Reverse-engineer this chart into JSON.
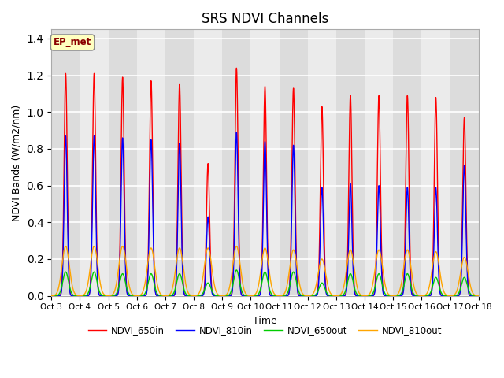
{
  "title": "SRS NDVI Channels",
  "xlabel": "Time",
  "ylabel": "NDVI Bands (W/m2/nm)",
  "xlim_days": [
    0,
    15
  ],
  "ylim": [
    0,
    1.45
  ],
  "yticks": [
    0.0,
    0.2,
    0.4,
    0.6,
    0.8,
    1.0,
    1.2,
    1.4
  ],
  "xtick_labels": [
    "Oct 3",
    "Oct 4",
    "Oct 5",
    "Oct 6",
    "Oct 7",
    "Oct 8",
    "Oct 9",
    "Oct 10",
    "Oct 11",
    "Oct 12",
    "Oct 13",
    "Oct 14",
    "Oct 15",
    "Oct 16",
    "Oct 17",
    "Oct 18"
  ],
  "annotation_text": "EP_met",
  "annotation_color": "#8B0000",
  "annotation_bg": "#FFFFC0",
  "background_color": "#E8E8E8",
  "band_color_light": "#F0F0F0",
  "band_color_dark": "#D8D8D8",
  "line_colors": {
    "NDVI_650in": "#FF0000",
    "NDVI_810in": "#0000FF",
    "NDVI_650out": "#00CC00",
    "NDVI_810out": "#FFA500"
  },
  "peak_650in": [
    1.21,
    1.21,
    1.19,
    1.17,
    1.15,
    0.72,
    1.24,
    1.14,
    1.13,
    1.03,
    1.09,
    1.09,
    1.09,
    1.08,
    0.97
  ],
  "peak_810in": [
    0.87,
    0.87,
    0.86,
    0.85,
    0.83,
    0.43,
    0.89,
    0.84,
    0.82,
    0.59,
    0.61,
    0.6,
    0.59,
    0.59,
    0.71
  ],
  "peak_650out": [
    0.13,
    0.13,
    0.12,
    0.12,
    0.12,
    0.07,
    0.14,
    0.13,
    0.13,
    0.07,
    0.12,
    0.12,
    0.12,
    0.1,
    0.1
  ],
  "peak_810out": [
    0.27,
    0.27,
    0.27,
    0.26,
    0.26,
    0.26,
    0.27,
    0.26,
    0.25,
    0.2,
    0.25,
    0.25,
    0.25,
    0.24,
    0.21
  ],
  "figsize": [
    6.4,
    4.8
  ],
  "dpi": 100
}
